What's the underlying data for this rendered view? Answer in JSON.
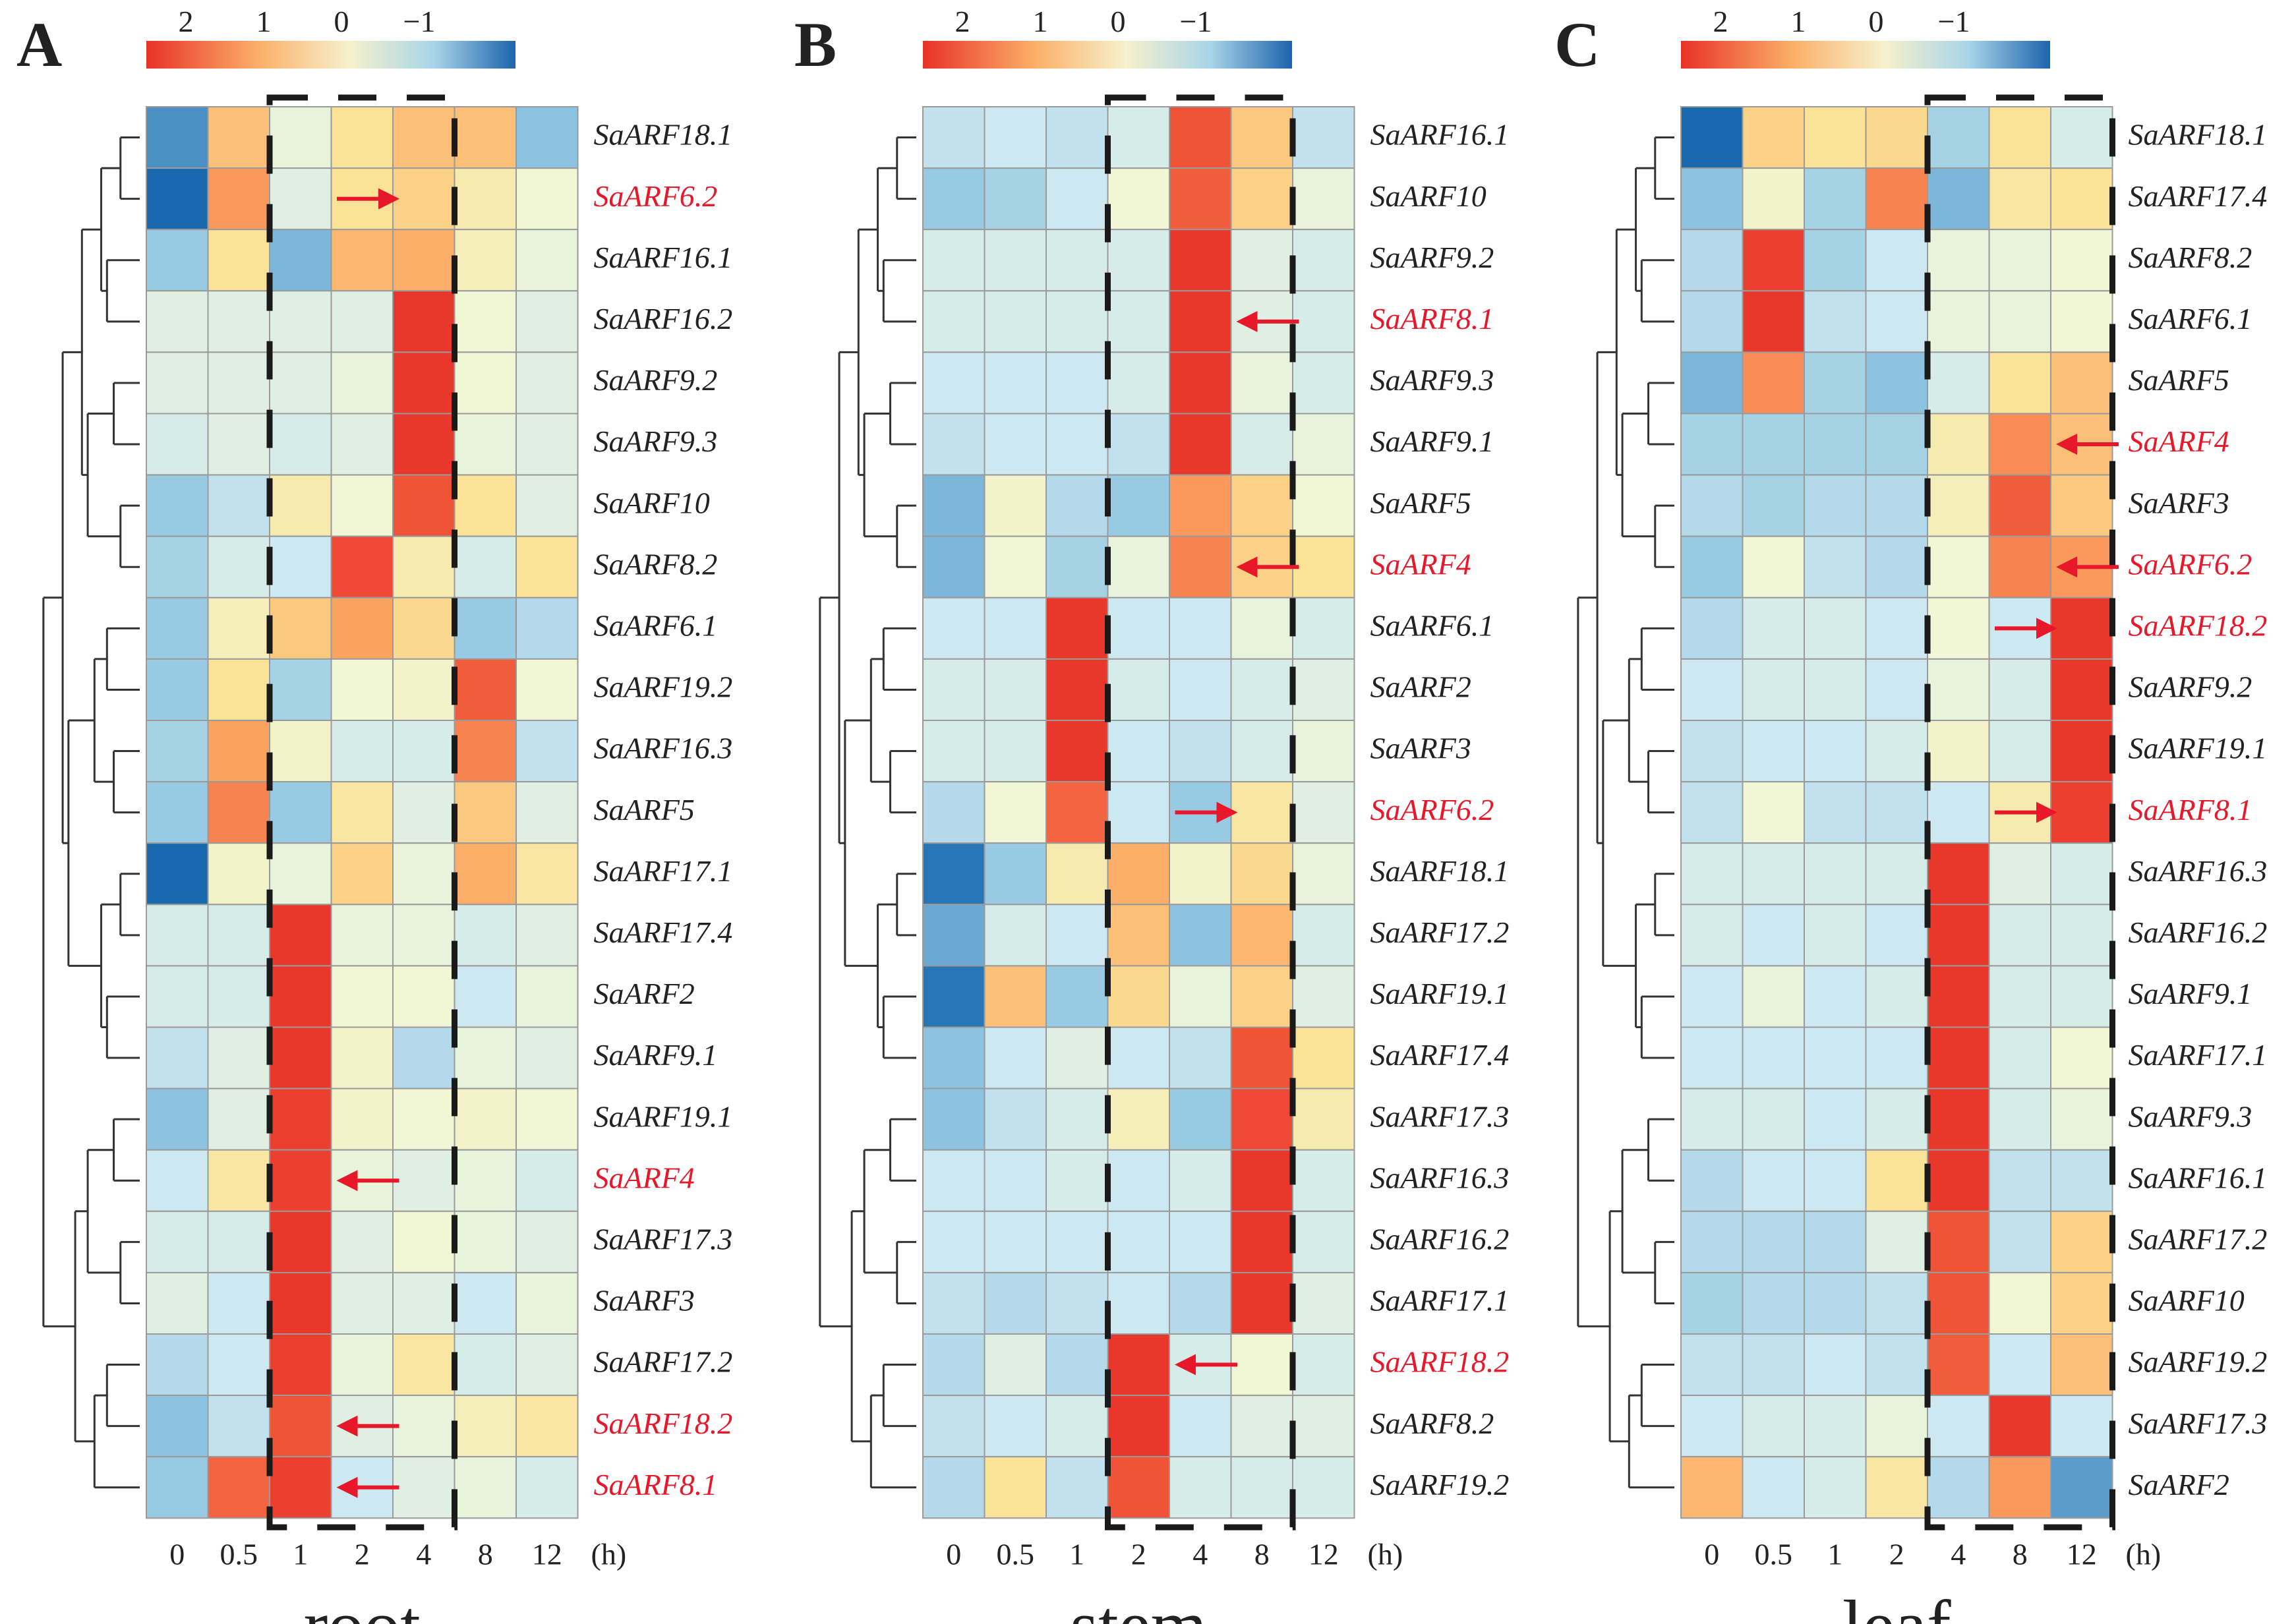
{
  "figure": {
    "colorbar_ticks": [
      "2",
      "1",
      "0",
      "−1"
    ],
    "time_unit": "(h)"
  },
  "chart_data": [
    {
      "type": "heatmap",
      "panel_label": "A",
      "title": "root",
      "x": [
        "0",
        "0.5",
        "1",
        "2",
        "4",
        "8",
        "12"
      ],
      "x_unit": "(h)",
      "highlight_columns": [
        "1",
        "2",
        "4"
      ],
      "colorbar": {
        "ticks": [
          2,
          1,
          0,
          -1
        ],
        "range": [
          2.5,
          -1.5
        ]
      },
      "rows": [
        {
          "gene": "SaARF18.1",
          "red": false,
          "values": [
            -1.2,
            1.0,
            0.0,
            0.6,
            1.0,
            1.0,
            -0.8
          ]
        },
        {
          "gene": "SaARF6.2",
          "red": true,
          "values": [
            -1.5,
            1.4,
            -0.1,
            0.6,
            0.8,
            0.4,
            0.1
          ]
        },
        {
          "gene": "SaARF16.1",
          "red": false,
          "values": [
            -0.7,
            0.6,
            -0.9,
            1.1,
            1.2,
            0.3,
            0.0
          ]
        },
        {
          "gene": "SaARF16.2",
          "red": false,
          "values": [
            -0.1,
            -0.1,
            -0.1,
            -0.1,
            2.4,
            0.1,
            -0.1
          ]
        },
        {
          "gene": "SaARF9.2",
          "red": false,
          "values": [
            -0.1,
            -0.1,
            -0.1,
            0.0,
            2.4,
            0.1,
            -0.1
          ]
        },
        {
          "gene": "SaARF9.3",
          "red": false,
          "values": [
            -0.2,
            -0.1,
            -0.2,
            -0.1,
            2.4,
            0.0,
            -0.1
          ]
        },
        {
          "gene": "SaARF10",
          "red": false,
          "values": [
            -0.7,
            -0.4,
            0.4,
            0.1,
            2.1,
            0.6,
            -0.1
          ]
        },
        {
          "gene": "SaARF8.2",
          "red": false,
          "values": [
            -0.6,
            -0.2,
            -0.3,
            2.2,
            0.4,
            -0.2,
            0.6
          ]
        },
        {
          "gene": "SaARF6.1",
          "red": false,
          "values": [
            -0.7,
            0.3,
            0.9,
            1.3,
            0.7,
            -0.7,
            -0.5
          ]
        },
        {
          "gene": "SaARF19.2",
          "red": false,
          "values": [
            -0.7,
            0.6,
            -0.6,
            0.1,
            0.2,
            2.0,
            0.1
          ]
        },
        {
          "gene": "SaARF16.3",
          "red": false,
          "values": [
            -0.6,
            1.3,
            0.2,
            -0.2,
            -0.2,
            1.6,
            -0.4
          ]
        },
        {
          "gene": "SaARF5",
          "red": false,
          "values": [
            -0.7,
            1.6,
            -0.7,
            0.5,
            -0.1,
            0.9,
            -0.1
          ]
        },
        {
          "gene": "SaARF17.1",
          "red": false,
          "values": [
            -1.6,
            0.2,
            0.0,
            0.8,
            0.0,
            1.2,
            0.5
          ]
        },
        {
          "gene": "SaARF17.4",
          "red": false,
          "values": [
            -0.2,
            -0.2,
            2.4,
            0.0,
            0.0,
            -0.2,
            -0.1
          ]
        },
        {
          "gene": "SaARF2",
          "red": false,
          "values": [
            -0.2,
            -0.2,
            2.4,
            0.1,
            0.1,
            -0.3,
            0.0
          ]
        },
        {
          "gene": "SaARF9.1",
          "red": false,
          "values": [
            -0.4,
            -0.1,
            2.4,
            0.2,
            -0.5,
            0.0,
            -0.1
          ]
        },
        {
          "gene": "SaARF19.1",
          "red": false,
          "values": [
            -0.8,
            -0.1,
            2.3,
            0.2,
            0.1,
            0.2,
            0.1
          ]
        },
        {
          "gene": "SaARF4",
          "red": true,
          "values": [
            -0.3,
            0.5,
            2.3,
            0.0,
            -0.1,
            0.0,
            -0.2
          ]
        },
        {
          "gene": "SaARF17.3",
          "red": false,
          "values": [
            -0.2,
            -0.2,
            2.4,
            -0.1,
            0.1,
            0.0,
            -0.1
          ]
        },
        {
          "gene": "SaARF3",
          "red": false,
          "values": [
            -0.1,
            -0.3,
            2.4,
            -0.1,
            -0.1,
            -0.3,
            0.0
          ]
        },
        {
          "gene": "SaARF17.2",
          "red": false,
          "values": [
            -0.5,
            -0.3,
            2.3,
            0.0,
            0.5,
            -0.2,
            -0.1
          ]
        },
        {
          "gene": "SaARF18.2",
          "red": true,
          "values": [
            -0.8,
            -0.4,
            2.1,
            -0.1,
            0.0,
            0.3,
            0.5
          ]
        },
        {
          "gene": "SaARF8.1",
          "red": true,
          "values": [
            -0.7,
            1.9,
            2.3,
            -0.3,
            -0.1,
            0.0,
            -0.2
          ]
        }
      ]
    },
    {
      "type": "heatmap",
      "panel_label": "B",
      "title": "stem",
      "x": [
        "0",
        "0.5",
        "1",
        "2",
        "4",
        "8",
        "12"
      ],
      "x_unit": "(h)",
      "highlight_columns": [
        "2",
        "4",
        "8"
      ],
      "colorbar": {
        "ticks": [
          2,
          1,
          0,
          -1
        ],
        "range": [
          2.5,
          -1.5
        ]
      },
      "rows": [
        {
          "gene": "SaARF16.1",
          "red": false,
          "values": [
            -0.4,
            -0.3,
            -0.4,
            -0.2,
            2.1,
            0.9,
            -0.4
          ]
        },
        {
          "gene": "SaARF10",
          "red": false,
          "values": [
            -0.7,
            -0.6,
            -0.3,
            0.1,
            2.0,
            0.8,
            0.0
          ]
        },
        {
          "gene": "SaARF9.2",
          "red": false,
          "values": [
            -0.2,
            -0.2,
            -0.2,
            -0.2,
            2.4,
            -0.1,
            -0.2
          ]
        },
        {
          "gene": "SaARF8.1",
          "red": true,
          "values": [
            -0.2,
            -0.2,
            -0.2,
            -0.2,
            2.4,
            -0.1,
            -0.2
          ]
        },
        {
          "gene": "SaARF9.3",
          "red": false,
          "values": [
            -0.3,
            -0.3,
            -0.3,
            -0.2,
            2.4,
            0.0,
            -0.2
          ]
        },
        {
          "gene": "SaARF9.1",
          "red": false,
          "values": [
            -0.4,
            -0.3,
            -0.3,
            -0.4,
            2.4,
            -0.2,
            0.0
          ]
        },
        {
          "gene": "SaARF5",
          "red": false,
          "values": [
            -0.9,
            0.2,
            -0.5,
            -0.7,
            1.4,
            0.8,
            0.1
          ]
        },
        {
          "gene": "SaARF4",
          "red": true,
          "values": [
            -0.9,
            0.1,
            -0.6,
            0.0,
            1.6,
            0.8,
            0.6
          ]
        },
        {
          "gene": "SaARF6.1",
          "red": false,
          "values": [
            -0.3,
            -0.3,
            2.4,
            -0.3,
            -0.3,
            0.0,
            -0.2
          ]
        },
        {
          "gene": "SaARF2",
          "red": false,
          "values": [
            -0.2,
            -0.2,
            2.4,
            -0.2,
            -0.3,
            -0.2,
            -0.1
          ]
        },
        {
          "gene": "SaARF3",
          "red": false,
          "values": [
            -0.2,
            -0.2,
            2.4,
            -0.3,
            -0.4,
            -0.2,
            0.0
          ]
        },
        {
          "gene": "SaARF6.2",
          "red": true,
          "values": [
            -0.5,
            0.1,
            1.9,
            -0.3,
            -0.7,
            0.5,
            -0.1
          ]
        },
        {
          "gene": "SaARF18.1",
          "red": false,
          "values": [
            -1.4,
            -0.7,
            0.4,
            1.2,
            0.2,
            0.7,
            0.0
          ]
        },
        {
          "gene": "SaARF17.2",
          "red": false,
          "values": [
            -1.0,
            -0.2,
            -0.3,
            1.0,
            -0.8,
            1.1,
            -0.2
          ]
        },
        {
          "gene": "SaARF19.1",
          "red": false,
          "values": [
            -1.4,
            1.0,
            -0.7,
            0.7,
            0.0,
            0.8,
            -0.1
          ]
        },
        {
          "gene": "SaARF17.4",
          "red": false,
          "values": [
            -0.8,
            -0.3,
            -0.1,
            -0.3,
            -0.4,
            2.1,
            0.6
          ]
        },
        {
          "gene": "SaARF17.3",
          "red": false,
          "values": [
            -0.8,
            -0.4,
            -0.2,
            0.3,
            -0.7,
            2.2,
            0.4
          ]
        },
        {
          "gene": "SaARF16.3",
          "red": false,
          "values": [
            -0.3,
            -0.3,
            -0.2,
            -0.3,
            -0.2,
            2.4,
            -0.2
          ]
        },
        {
          "gene": "SaARF16.2",
          "red": false,
          "values": [
            -0.3,
            -0.3,
            -0.3,
            -0.3,
            -0.3,
            2.4,
            -0.2
          ]
        },
        {
          "gene": "SaARF17.1",
          "red": false,
          "values": [
            -0.4,
            -0.5,
            -0.4,
            -0.3,
            -0.5,
            2.4,
            -0.1
          ]
        },
        {
          "gene": "SaARF18.2",
          "red": true,
          "values": [
            -0.5,
            -0.1,
            -0.5,
            2.4,
            -0.2,
            0.1,
            -0.2
          ]
        },
        {
          "gene": "SaARF8.2",
          "red": false,
          "values": [
            -0.4,
            -0.3,
            -0.2,
            2.4,
            -0.3,
            -0.1,
            -0.1
          ]
        },
        {
          "gene": "SaARF19.2",
          "red": false,
          "values": [
            -0.5,
            0.6,
            -0.4,
            2.1,
            -0.2,
            -0.2,
            -0.2
          ]
        }
      ]
    },
    {
      "type": "heatmap",
      "panel_label": "C",
      "title": "leaf",
      "x": [
        "0",
        "0.5",
        "1",
        "2",
        "4",
        "8",
        "12"
      ],
      "x_unit": "(h)",
      "highlight_columns": [
        "4",
        "8",
        "12"
      ],
      "colorbar": {
        "ticks": [
          2,
          1,
          0,
          -1
        ],
        "range": [
          2.5,
          -1.5
        ]
      },
      "rows": [
        {
          "gene": "SaARF18.1",
          "red": false,
          "values": [
            -1.6,
            0.8,
            0.6,
            0.7,
            -0.6,
            0.6,
            -0.2
          ]
        },
        {
          "gene": "SaARF17.4",
          "red": false,
          "values": [
            -0.8,
            0.2,
            -0.6,
            1.6,
            -0.9,
            0.5,
            0.6
          ]
        },
        {
          "gene": "SaARF8.2",
          "red": false,
          "values": [
            -0.5,
            2.3,
            -0.6,
            -0.3,
            0.0,
            0.0,
            0.1
          ]
        },
        {
          "gene": "SaARF6.1",
          "red": false,
          "values": [
            -0.5,
            2.4,
            -0.4,
            -0.3,
            0.0,
            0.0,
            0.1
          ]
        },
        {
          "gene": "SaARF5",
          "red": false,
          "values": [
            -0.9,
            1.5,
            -0.6,
            -0.8,
            -0.2,
            0.6,
            1.0
          ]
        },
        {
          "gene": "SaARF4",
          "red": true,
          "values": [
            -0.6,
            -0.6,
            -0.6,
            -0.6,
            0.4,
            1.5,
            1.0
          ]
        },
        {
          "gene": "SaARF3",
          "red": false,
          "values": [
            -0.5,
            -0.6,
            -0.5,
            -0.5,
            0.3,
            2.0,
            0.9
          ]
        },
        {
          "gene": "SaARF6.2",
          "red": true,
          "values": [
            -0.7,
            0.1,
            -0.4,
            -0.5,
            0.1,
            1.6,
            1.4
          ]
        },
        {
          "gene": "SaARF18.2",
          "red": true,
          "values": [
            -0.5,
            -0.2,
            -0.2,
            -0.3,
            0.1,
            -0.3,
            2.4
          ]
        },
        {
          "gene": "SaARF9.2",
          "red": false,
          "values": [
            -0.3,
            -0.2,
            -0.2,
            -0.3,
            0.0,
            -0.2,
            2.4
          ]
        },
        {
          "gene": "SaARF19.1",
          "red": false,
          "values": [
            -0.4,
            -0.3,
            -0.3,
            -0.2,
            0.2,
            -0.2,
            2.4
          ]
        },
        {
          "gene": "SaARF8.1",
          "red": true,
          "values": [
            -0.4,
            0.1,
            -0.4,
            -0.4,
            -0.3,
            0.4,
            2.3
          ]
        },
        {
          "gene": "SaARF16.3",
          "red": false,
          "values": [
            -0.2,
            -0.2,
            -0.2,
            -0.2,
            2.4,
            -0.1,
            -0.2
          ]
        },
        {
          "gene": "SaARF16.2",
          "red": false,
          "values": [
            -0.2,
            -0.3,
            -0.2,
            -0.3,
            2.4,
            -0.2,
            -0.2
          ]
        },
        {
          "gene": "SaARF9.1",
          "red": false,
          "values": [
            -0.3,
            0.0,
            -0.3,
            -0.2,
            2.4,
            -0.2,
            -0.2
          ]
        },
        {
          "gene": "SaARF17.1",
          "red": false,
          "values": [
            -0.3,
            -0.3,
            -0.3,
            -0.3,
            2.4,
            -0.2,
            0.1
          ]
        },
        {
          "gene": "SaARF9.3",
          "red": false,
          "values": [
            -0.2,
            -0.2,
            -0.3,
            -0.2,
            2.4,
            -0.2,
            0.0
          ]
        },
        {
          "gene": "SaARF16.1",
          "red": false,
          "values": [
            -0.5,
            -0.3,
            -0.3,
            0.6,
            2.4,
            -0.4,
            -0.4
          ]
        },
        {
          "gene": "SaARF17.2",
          "red": false,
          "values": [
            -0.5,
            -0.5,
            -0.5,
            -0.1,
            2.1,
            -0.4,
            0.8
          ]
        },
        {
          "gene": "SaARF10",
          "red": false,
          "values": [
            -0.6,
            -0.5,
            -0.5,
            -0.4,
            2.1,
            0.1,
            0.8
          ]
        },
        {
          "gene": "SaARF19.2",
          "red": false,
          "values": [
            -0.4,
            -0.4,
            -0.3,
            -0.4,
            2.0,
            -0.3,
            1.0
          ]
        },
        {
          "gene": "SaARF17.3",
          "red": false,
          "values": [
            -0.3,
            -0.2,
            -0.2,
            0.0,
            -0.3,
            2.4,
            -0.3
          ]
        },
        {
          "gene": "SaARF2",
          "red": false,
          "values": [
            1.1,
            -0.3,
            -0.2,
            0.5,
            -0.5,
            1.4,
            -1.1
          ]
        }
      ]
    }
  ]
}
